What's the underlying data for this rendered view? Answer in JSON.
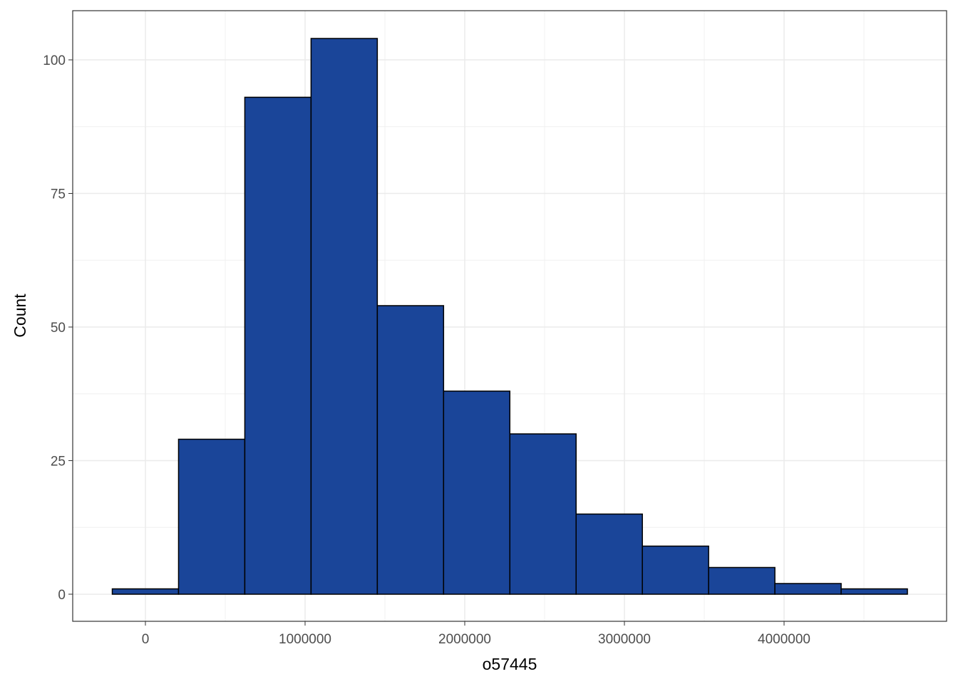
{
  "chart_data": {
    "type": "histogram",
    "x_label": "o57445",
    "y_label": "Count",
    "bins": [
      -207500,
      207500,
      622500,
      1037500,
      1452500,
      1867500,
      2282500,
      2697500,
      3112500,
      3527500,
      3942500,
      4357500,
      4772500
    ],
    "counts": [
      1,
      29,
      93,
      104,
      54,
      38,
      30,
      15,
      9,
      5,
      2,
      1
    ],
    "color": "#1a4599",
    "edge_color": "#000000",
    "xlim": [
      -455357,
      5017857
    ],
    "ylim": [
      -5.07,
      109.2
    ],
    "xticks": [
      0,
      1000000,
      2000000,
      3000000,
      4000000
    ],
    "yticks": [
      0,
      25,
      50,
      75,
      100
    ],
    "x_minor_ticks": [
      500000,
      1500000,
      2500000,
      3500000,
      4500000
    ],
    "y_minor_ticks": [
      12.5,
      37.5,
      62.5,
      87.5
    ],
    "grid": true
  }
}
